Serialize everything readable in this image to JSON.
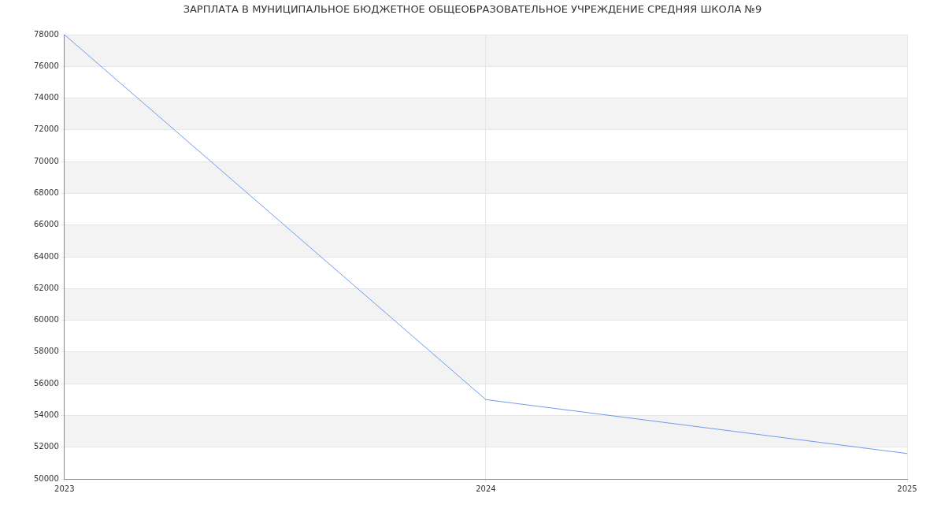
{
  "chart_data": {
    "type": "line",
    "title": "ЗАРПЛАТА В МУНИЦИПАЛЬНОЕ БЮДЖЕТНОЕ ОБЩЕОБРАЗОВАТЕЛЬНОЕ УЧРЕЖДЕНИЕ СРЕДНЯЯ ШКОЛА №9",
    "categories": [
      "2023",
      "2024",
      "2025"
    ],
    "series": [
      {
        "color": "#7099f0",
        "values": [
          78000,
          55000,
          51600
        ]
      }
    ],
    "ylim": [
      50000,
      78000
    ],
    "yticks": [
      50000,
      52000,
      54000,
      56000,
      58000,
      60000,
      62000,
      64000,
      66000,
      68000,
      70000,
      72000,
      74000,
      76000,
      78000
    ],
    "grid": true,
    "legend": false,
    "marker": "none",
    "line_style": "solid"
  }
}
